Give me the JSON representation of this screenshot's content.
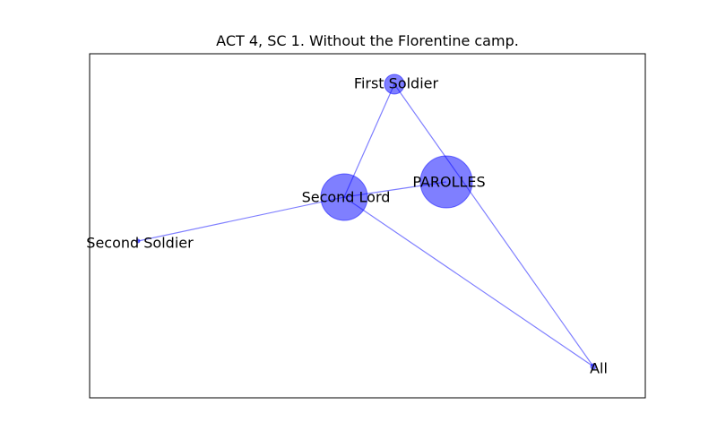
{
  "figure": {
    "title": "ACT 4, SC 1. Without the Florentine camp."
  },
  "colors": {
    "node_fill": "#0000ff",
    "edge": "#0000ff",
    "frame": "#000000",
    "background": "#ffffff"
  },
  "nodes": [
    {
      "id": "first-soldier",
      "label": "First Soldier",
      "size": 1
    },
    {
      "id": "parolles",
      "label": "PAROLLES",
      "size": 3.2
    },
    {
      "id": "second-lord",
      "label": "Second Lord",
      "size": 2.3
    },
    {
      "id": "second-soldier",
      "label": "Second Soldier",
      "size": 0.1
    },
    {
      "id": "all",
      "label": "All",
      "size": 0.15
    }
  ],
  "edges": [
    [
      "first-soldier",
      "second-lord"
    ],
    [
      "first-soldier",
      "all"
    ],
    [
      "second-lord",
      "parolles"
    ],
    [
      "second-lord",
      "second-soldier"
    ],
    [
      "second-lord",
      "all"
    ]
  ]
}
